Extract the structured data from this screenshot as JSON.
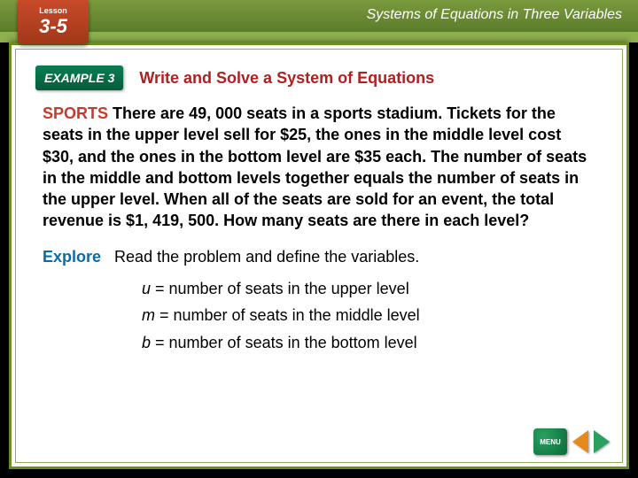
{
  "topbar": {
    "lesson_label": "Lesson",
    "lesson_number": "3-5",
    "chapter_title": "Systems of Equations in Three Variables"
  },
  "example": {
    "badge": "EXAMPLE 3",
    "title": "Write and Solve a System of Equations"
  },
  "problem": {
    "category": "SPORTS",
    "text": "There are 49, 000 seats in a sports stadium. Tickets for the seats in the upper level sell for $25, the ones in the middle level cost $30, and the ones in the bottom level are $35 each. The number of seats in the middle and bottom levels together equals the number of seats in the upper level. When all of the seats are sold for an event, the total revenue is $1, 419, 500. How many seats are there in each level?"
  },
  "explore": {
    "label": "Explore",
    "text": "Read the problem and define the variables.",
    "variables": [
      {
        "sym": "u",
        "def": " = number of seats in the upper level"
      },
      {
        "sym": "m",
        "def": " = number of seats in the middle level"
      },
      {
        "sym": "b",
        "def": " = number of seats in the bottom level"
      }
    ]
  },
  "nav": {
    "menu": "MENU"
  },
  "colors": {
    "topbar_gradient_from": "#7c9a3e",
    "topbar_gradient_to": "#5a7c2a",
    "frame_border": "#6b8e23",
    "example_badge": "#0a7d52",
    "title_red": "#b02020",
    "category_red": "#c83a2a",
    "explore_blue": "#0a6ca8",
    "arrow_left": "#e68a1e",
    "arrow_right": "#2aa060"
  }
}
